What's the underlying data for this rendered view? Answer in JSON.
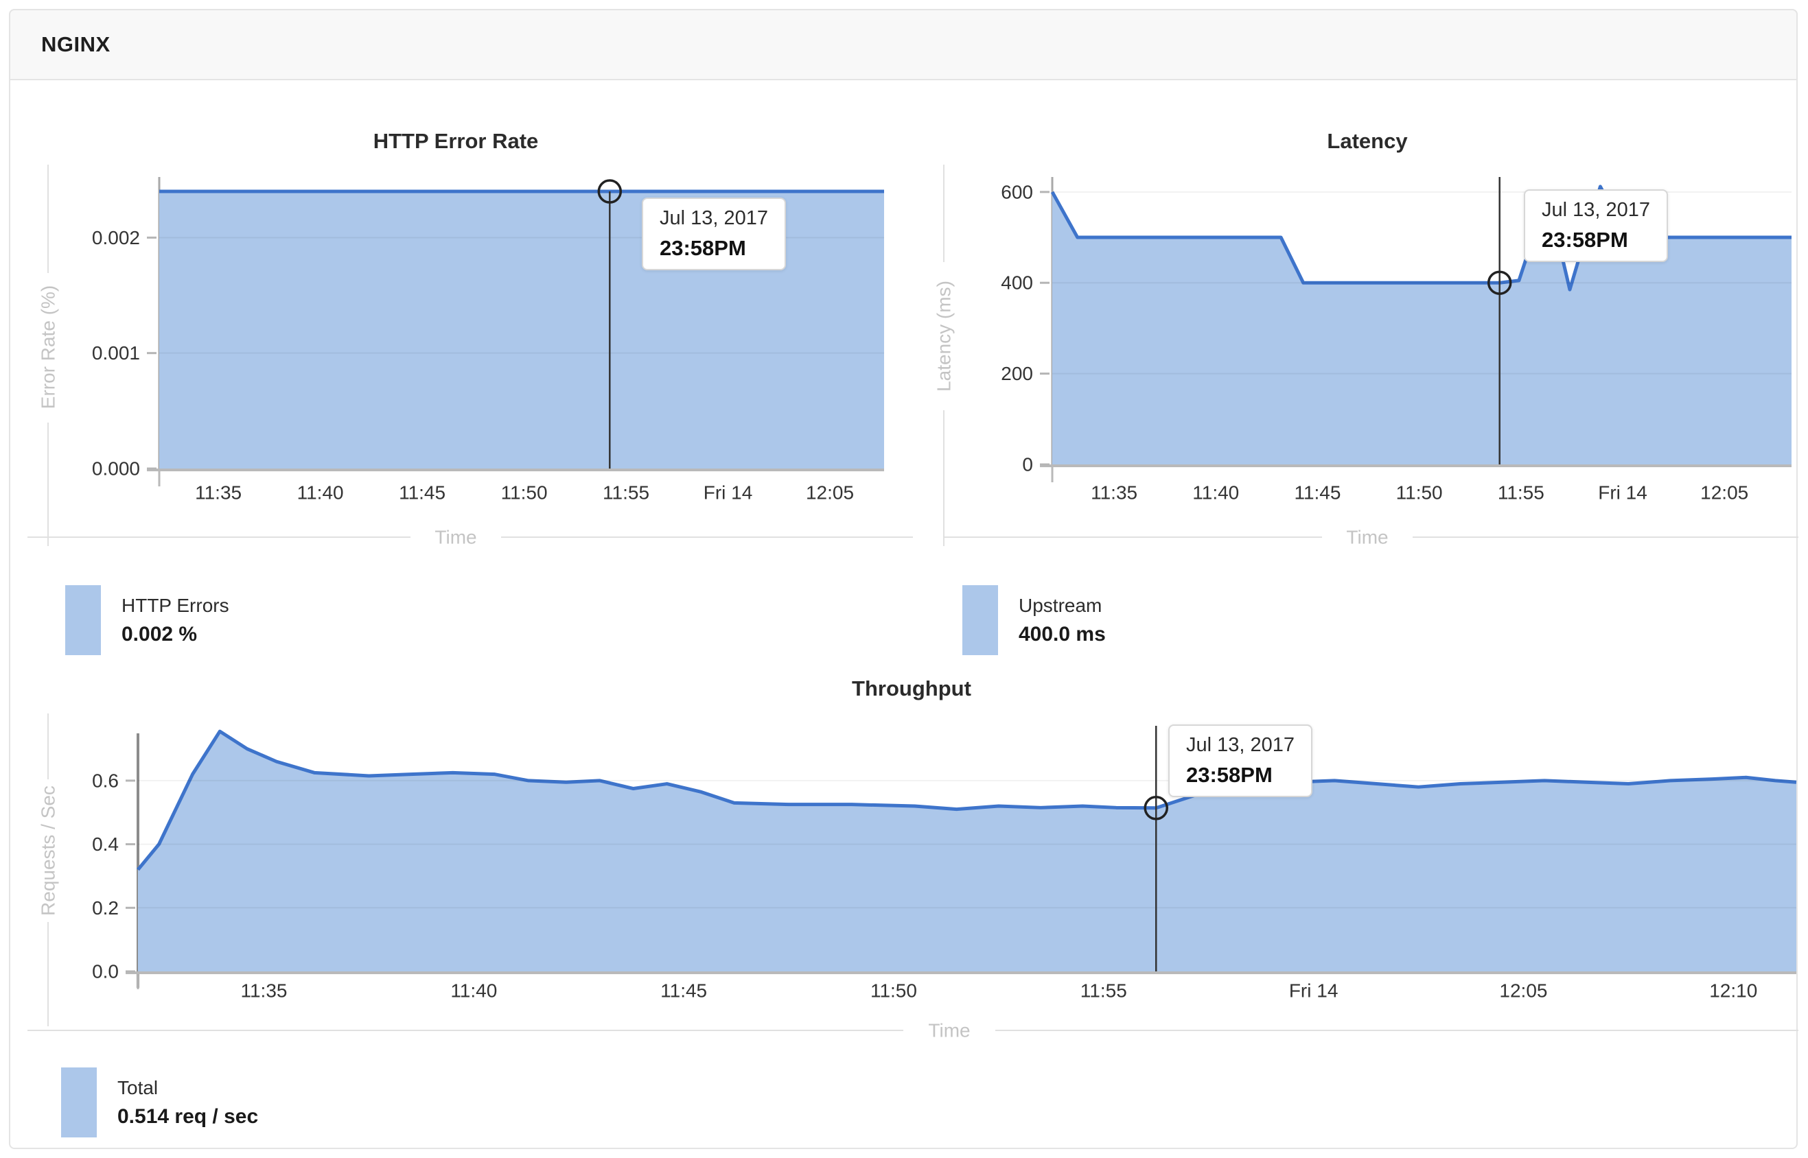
{
  "app": {
    "title": "NGINX"
  },
  "colors": {
    "line": "#3E74CB",
    "fill": "#ACC7EA",
    "grid": "rgba(0,0,0,0.055)",
    "axis_line": "#b9b9b9",
    "spine": "#a9a9a9",
    "spine_dark": "#8c8c8c",
    "tick_label": "#333333",
    "axis_title": "#c4c4c4",
    "cursor": "#333333",
    "header_bg": "#f8f8f8",
    "card_border": "#e4e4e4"
  },
  "chart_data": [
    {
      "id": "http_error_rate",
      "type": "area",
      "title": "HTTP Error Rate",
      "xlabel": "Time",
      "ylabel": "Error Rate (%)",
      "x_unit": "minutes after 11:30 (Jul 13, 2017)",
      "x_domain": [
        2.1,
        37.66
      ],
      "y_domain": [
        0,
        0.002525
      ],
      "x_ticks": [
        {
          "x": 5,
          "label": "11:35"
        },
        {
          "x": 10,
          "label": "11:40"
        },
        {
          "x": 15,
          "label": "11:45"
        },
        {
          "x": 20,
          "label": "11:50"
        },
        {
          "x": 25,
          "label": "11:55"
        },
        {
          "x": 30,
          "label": "Fri 14"
        },
        {
          "x": 35,
          "label": "12:05"
        }
      ],
      "y_ticks": [
        {
          "y": 0,
          "label": "0.000"
        },
        {
          "y": 0.001,
          "label": "0.001"
        },
        {
          "y": 0.002,
          "label": "0.002"
        }
      ],
      "series": [
        {
          "name": "HTTP Errors",
          "points": [
            [
              2.1,
              0.0024
            ],
            [
              37.66,
              0.0024
            ]
          ]
        }
      ],
      "cursor": {
        "x": 24.2,
        "value": 0.0024,
        "tooltip": {
          "date": "Jul 13, 2017",
          "time": "23:58PM"
        }
      },
      "legend": {
        "label": "HTTP Errors",
        "value": "0.002 %"
      }
    },
    {
      "id": "latency",
      "type": "area",
      "title": "Latency",
      "xlabel": "Time",
      "ylabel": "Latency (ms)",
      "x_unit": "minutes after 11:30 (Jul 13, 2017)",
      "x_domain": [
        1.96,
        38.3
      ],
      "y_domain": [
        0,
        633
      ],
      "x_ticks": [
        {
          "x": 5,
          "label": "11:35"
        },
        {
          "x": 10,
          "label": "11:40"
        },
        {
          "x": 15,
          "label": "11:45"
        },
        {
          "x": 20,
          "label": "11:50"
        },
        {
          "x": 25,
          "label": "11:55"
        },
        {
          "x": 30,
          "label": "Fri 14"
        },
        {
          "x": 35,
          "label": "12:05"
        }
      ],
      "y_ticks": [
        {
          "y": 0,
          "label": "0"
        },
        {
          "y": 200,
          "label": "200"
        },
        {
          "y": 400,
          "label": "400"
        },
        {
          "y": 600,
          "label": "600"
        }
      ],
      "series": [
        {
          "name": "Upstream",
          "points": [
            [
              1.96,
              600
            ],
            [
              3.2,
              500
            ],
            [
              13.2,
              500
            ],
            [
              14.3,
              400
            ],
            [
              23.95,
              400
            ],
            [
              24.9,
              405
            ],
            [
              26.3,
              595
            ],
            [
              27.4,
              385
            ],
            [
              28.9,
              612
            ],
            [
              30.2,
              500
            ],
            [
              38.3,
              500
            ]
          ]
        }
      ],
      "cursor": {
        "x": 23.95,
        "value": 400,
        "tooltip": {
          "date": "Jul 13, 2017",
          "time": "23:58PM"
        }
      },
      "legend": {
        "label": "Upstream",
        "value": "400.0 ms"
      }
    },
    {
      "id": "throughput",
      "type": "area",
      "title": "Throughput",
      "xlabel": "Time",
      "ylabel": "Requests / Sec",
      "x_unit": "minutes after 11:30 (Jul 13, 2017)",
      "x_domain": [
        2.0,
        41.5
      ],
      "y_domain": [
        0,
        0.7487
      ],
      "x_ticks": [
        {
          "x": 5,
          "label": "11:35"
        },
        {
          "x": 10,
          "label": "11:40"
        },
        {
          "x": 15,
          "label": "11:45"
        },
        {
          "x": 20,
          "label": "11:50"
        },
        {
          "x": 25,
          "label": "11:55"
        },
        {
          "x": 30,
          "label": "Fri 14"
        },
        {
          "x": 35,
          "label": "12:05"
        },
        {
          "x": 40,
          "label": "12:10"
        }
      ],
      "y_ticks": [
        {
          "y": 0,
          "label": "0.0"
        },
        {
          "y": 0.2,
          "label": "0.2"
        },
        {
          "y": 0.4,
          "label": "0.4"
        },
        {
          "y": 0.6,
          "label": "0.6"
        }
      ],
      "series": [
        {
          "name": "Total",
          "points": [
            [
              2.0,
              0.32
            ],
            [
              2.5,
              0.4
            ],
            [
              3.3,
              0.62
            ],
            [
              3.95,
              0.755
            ],
            [
              4.6,
              0.7
            ],
            [
              5.3,
              0.66
            ],
            [
              6.2,
              0.625
            ],
            [
              7.5,
              0.615
            ],
            [
              8.5,
              0.62
            ],
            [
              9.5,
              0.625
            ],
            [
              10.5,
              0.62
            ],
            [
              11.3,
              0.6
            ],
            [
              12.2,
              0.595
            ],
            [
              13.0,
              0.6
            ],
            [
              13.8,
              0.575
            ],
            [
              14.6,
              0.59
            ],
            [
              15.4,
              0.565
            ],
            [
              16.2,
              0.53
            ],
            [
              17.5,
              0.525
            ],
            [
              19.0,
              0.525
            ],
            [
              20.5,
              0.52
            ],
            [
              21.5,
              0.51
            ],
            [
              22.5,
              0.52
            ],
            [
              23.5,
              0.515
            ],
            [
              24.5,
              0.52
            ],
            [
              25.3,
              0.515
            ],
            [
              26.25,
              0.514
            ],
            [
              27.2,
              0.555
            ],
            [
              28.2,
              0.585
            ],
            [
              29.5,
              0.595
            ],
            [
              30.5,
              0.6
            ],
            [
              31.5,
              0.59
            ],
            [
              32.5,
              0.58
            ],
            [
              33.5,
              0.59
            ],
            [
              34.5,
              0.595
            ],
            [
              35.5,
              0.6
            ],
            [
              36.5,
              0.595
            ],
            [
              37.5,
              0.59
            ],
            [
              38.5,
              0.6
            ],
            [
              39.5,
              0.605
            ],
            [
              40.3,
              0.61
            ],
            [
              41.0,
              0.6
            ],
            [
              41.5,
              0.595
            ]
          ]
        }
      ],
      "cursor": {
        "x": 26.25,
        "value": 0.514,
        "tooltip": {
          "date": "Jul 13, 2017",
          "time": "23:58PM"
        }
      },
      "legend": {
        "label": "Total",
        "value": "0.514 req / sec"
      }
    }
  ]
}
